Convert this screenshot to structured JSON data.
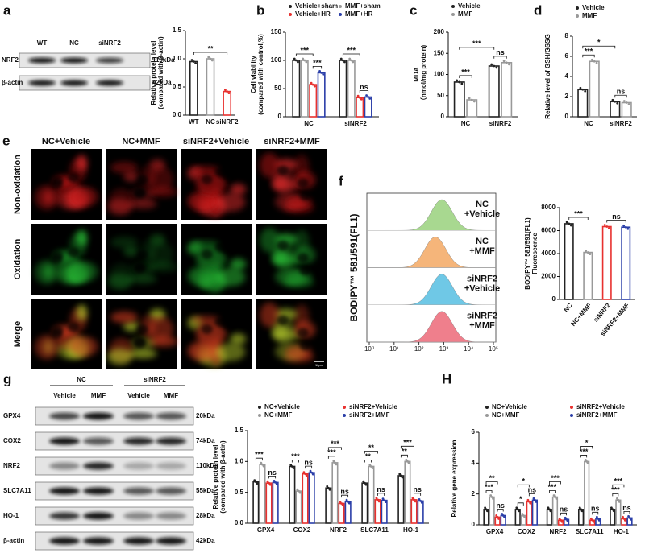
{
  "panel_labels": [
    "a",
    "b",
    "c",
    "d",
    "e",
    "f",
    "g",
    "H"
  ],
  "blot_a": {
    "lanes": [
      "WT",
      "NC",
      "siNRF2"
    ],
    "rows": [
      {
        "protein": "NRF2",
        "size": "110kDa"
      },
      {
        "protein": "β-actin",
        "size": "42kDa"
      }
    ]
  },
  "microscopy_e": {
    "columns": [
      "NC+Vehicle",
      "NC+MMF",
      "siNRF2+Vehicle",
      "siNRF2+MMF"
    ],
    "rows": [
      "Non-oxidation",
      "Oxidation",
      "Merge"
    ],
    "scale_bar": "10μm"
  },
  "flow_f": {
    "y_label": "BODIPY™ 581/591(FL1)",
    "x_ticks": [
      "10⁰",
      "10¹",
      "10²",
      "10³",
      "10⁴",
      "10⁵"
    ],
    "samples": [
      {
        "label": [
          "NC",
          "+Vehicle"
        ],
        "color": "#2e9e3e"
      },
      {
        "label": [
          "NC",
          "+MMF"
        ],
        "color": "#e8982e"
      },
      {
        "label": [
          "siNRF2",
          "+Vehicle"
        ],
        "color": "#2a9fc9"
      },
      {
        "label": [
          "siNRF2",
          "+MMF"
        ],
        "color": "#d6287a"
      }
    ]
  },
  "blot_g": {
    "groups": [
      "NC",
      "siNRF2"
    ],
    "lanes": [
      "Vehicle",
      "MMF",
      "Vehicle",
      "MMF"
    ],
    "rows": [
      {
        "protein": "GPX4",
        "size": "20kDa"
      },
      {
        "protein": "COX2",
        "size": "74kDa"
      },
      {
        "protein": "NRF2",
        "size": "110kDa"
      },
      {
        "protein": "SLC7A11",
        "size": "55kDa"
      },
      {
        "protein": "HO-1",
        "size": "28kDa"
      },
      {
        "protein": "β-actin",
        "size": "42kDa"
      }
    ]
  },
  "chart_data": [
    {
      "type": "bar",
      "y_label": [
        "Relative protein level",
        "(compared with β-actin)"
      ],
      "categories": [
        "WT",
        "NC",
        "siNRF2"
      ],
      "values": [
        0.95,
        1.0,
        0.42
      ],
      "colors": [
        "#222222",
        "#999999",
        "#e8312f"
      ],
      "ylim": [
        0,
        1.5
      ],
      "yticks": [
        {
          "value": 0,
          "label": "0.0"
        },
        {
          "value": 0.5,
          "label": "0.5"
        },
        {
          "value": 1,
          "label": "1.0"
        },
        {
          "value": 1.5,
          "label": "1.5"
        }
      ],
      "annotations": [
        {
          "label": "**",
          "between": [
            [
              0,
              0
            ],
            [
              2,
              0
            ]
          ]
        }
      ]
    },
    {
      "type": "bar",
      "y_label": [
        "Cell viability",
        "(compared with control,%)"
      ],
      "categories": [
        "NC",
        "siNRF2"
      ],
      "series": [
        {
          "name": "Vehicle+sham",
          "color": "#222222",
          "values": [
            100,
            100
          ]
        },
        {
          "name": "MMF+sham",
          "color": "#999999",
          "values": [
            100,
            100
          ]
        },
        {
          "name": "Vehicle+HR",
          "color": "#e8312f",
          "values": [
            57,
            34
          ]
        },
        {
          "name": "MMF+HR",
          "color": "#2a3ea8",
          "values": [
            78,
            35
          ]
        }
      ],
      "ylim": [
        0,
        150
      ],
      "yticks": [
        0,
        50,
        100,
        150
      ],
      "annotations": [
        {
          "label": "***",
          "between": [
            [
              0,
              2
            ],
            [
              0,
              3
            ]
          ]
        },
        {
          "label": "ns",
          "between": [
            [
              1,
              2
            ],
            [
              1,
              3
            ]
          ]
        },
        {
          "label": "***",
          "between": [
            [
              0,
              0
            ],
            [
              0,
              2
            ]
          ]
        },
        {
          "label": "***",
          "between": [
            [
              1,
              0
            ],
            [
              1,
              2
            ]
          ]
        }
      ]
    },
    {
      "type": "bar",
      "y_label": [
        "MDA",
        "（nmol/mg protein)"
      ],
      "categories": [
        "NC",
        "siNRF2"
      ],
      "series": [
        {
          "name": "Vehicle",
          "color": "#222222",
          "values": [
            82,
            120
          ]
        },
        {
          "name": "MMF",
          "color": "#999999",
          "values": [
            40,
            128
          ]
        }
      ],
      "ylim": [
        0,
        200
      ],
      "yticks": [
        0,
        50,
        100,
        150,
        200
      ],
      "annotations": [
        {
          "label": "***",
          "between": [
            [
              0,
              0
            ],
            [
              0,
              1
            ]
          ]
        },
        {
          "label": "ns",
          "between": [
            [
              1,
              0
            ],
            [
              1,
              1
            ]
          ]
        },
        {
          "label": "***",
          "between": [
            [
              0,
              0
            ],
            [
              1,
              0
            ]
          ]
        }
      ]
    },
    {
      "type": "bar",
      "y_label": [
        "Relative level of GSH/GSSG"
      ],
      "categories": [
        "NC",
        "siNRF2"
      ],
      "series": [
        {
          "name": "Vehicle",
          "color": "#222222",
          "values": [
            2.7,
            1.5
          ]
        },
        {
          "name": "MMF",
          "color": "#999999",
          "values": [
            5.5,
            1.4
          ]
        }
      ],
      "ylim": [
        0,
        8
      ],
      "yticks": [
        0,
        2,
        4,
        6,
        8
      ],
      "annotations": [
        {
          "label": "***",
          "between": [
            [
              0,
              0
            ],
            [
              0,
              1
            ]
          ]
        },
        {
          "label": "ns",
          "between": [
            [
              1,
              0
            ],
            [
              1,
              1
            ]
          ]
        },
        {
          "label": "*",
          "between": [
            [
              0,
              0
            ],
            [
              1,
              0
            ]
          ]
        }
      ]
    },
    {
      "type": "bar",
      "y_label": [
        "BODIPY™ 581/591(FL1)",
        "Fluorescence"
      ],
      "categories": [
        "NC",
        "NC+MMF",
        "siNRF2",
        "siNRF2+MMF"
      ],
      "values": [
        6600,
        4100,
        6350,
        6300
      ],
      "colors": [
        "#222222",
        "#999999",
        "#e8312f",
        "#2a3ea8"
      ],
      "ylim": [
        0,
        8000
      ],
      "yticks": [
        0,
        2000,
        4000,
        6000,
        8000
      ],
      "annotations": [
        {
          "label": "***",
          "between": [
            [
              0,
              0
            ],
            [
              1,
              0
            ]
          ]
        },
        {
          "label": "ns",
          "between": [
            [
              2,
              0
            ],
            [
              3,
              0
            ]
          ]
        }
      ]
    },
    {
      "type": "bar",
      "y_label": [
        "Relative protein level",
        "(compared with β-actin)"
      ],
      "categories": [
        "GPX4",
        "COX2",
        "NRF2",
        "SLC7A11",
        "HO-1"
      ],
      "series": [
        {
          "name": "NC+Vehicle",
          "color": "#222222",
          "values": [
            0.67,
            0.92,
            0.57,
            0.65,
            0.77
          ]
        },
        {
          "name": "siNRF2+Vehicle",
          "color": "#e8312f",
          "values": [
            0.65,
            0.8,
            0.32,
            0.38,
            0.38
          ]
        },
        {
          "name": "NC+MMF",
          "color": "#999999",
          "values": [
            0.95,
            0.52,
            0.98,
            0.92,
            1.0
          ]
        },
        {
          "name": "siNRF2+MMF",
          "color": "#2a3ea8",
          "values": [
            0.66,
            0.82,
            0.35,
            0.37,
            0.36
          ]
        }
      ],
      "order": [
        0,
        2,
        1,
        3
      ],
      "ylim": [
        0,
        1.5
      ],
      "yticks": [
        {
          "value": 0,
          "label": "0.0"
        },
        {
          "value": 0.5,
          "label": "0.5"
        },
        {
          "value": 1,
          "label": "1.0"
        },
        {
          "value": 1.5,
          "label": "1.5"
        }
      ],
      "annotations": [
        {
          "label": "***",
          "between": [
            [
              0,
              0
            ],
            [
              0,
              2
            ]
          ]
        },
        {
          "label": "ns",
          "between": [
            [
              0,
              1
            ],
            [
              0,
              3
            ]
          ]
        },
        {
          "label": "***",
          "between": [
            [
              1,
              0
            ],
            [
              1,
              2
            ]
          ]
        },
        {
          "label": "ns",
          "between": [
            [
              1,
              1
            ],
            [
              1,
              3
            ]
          ]
        },
        {
          "label": "***",
          "between": [
            [
              2,
              0
            ],
            [
              2,
              2
            ]
          ]
        },
        {
          "label": "ns",
          "between": [
            [
              2,
              1
            ],
            [
              2,
              3
            ]
          ]
        },
        {
          "label": "***",
          "between": [
            [
              2,
              0
            ],
            [
              2,
              1
            ]
          ]
        },
        {
          "label": "**",
          "between": [
            [
              3,
              0
            ],
            [
              3,
              2
            ]
          ]
        },
        {
          "label": "ns",
          "between": [
            [
              3,
              1
            ],
            [
              3,
              3
            ]
          ]
        },
        {
          "label": "**",
          "between": [
            [
              3,
              0
            ],
            [
              3,
              1
            ]
          ]
        },
        {
          "label": "**",
          "between": [
            [
              4,
              0
            ],
            [
              4,
              2
            ]
          ]
        },
        {
          "label": "ns",
          "between": [
            [
              4,
              1
            ],
            [
              4,
              3
            ]
          ]
        },
        {
          "label": "***",
          "between": [
            [
              4,
              0
            ],
            [
              4,
              1
            ]
          ]
        }
      ]
    },
    {
      "type": "bar",
      "y_label": [
        "Relative gene expression"
      ],
      "categories": [
        "GPX4",
        "COX2",
        "NRF2",
        "SLC7A11",
        "HO-1"
      ],
      "series": [
        {
          "name": "NC+Vehicle",
          "color": "#222222",
          "values": [
            1.0,
            1.0,
            1.0,
            1.0,
            1.0
          ]
        },
        {
          "name": "siNRF2+Vehicle",
          "color": "#e8312f",
          "values": [
            0.5,
            1.5,
            0.3,
            0.3,
            0.4
          ]
        },
        {
          "name": "NC+MMF",
          "color": "#999999",
          "values": [
            1.8,
            0.6,
            1.8,
            4.1,
            1.6
          ]
        },
        {
          "name": "siNRF2+MMF",
          "color": "#2a3ea8",
          "values": [
            0.6,
            1.6,
            0.35,
            0.4,
            0.45
          ]
        }
      ],
      "order": [
        0,
        2,
        1,
        3
      ],
      "ylim": [
        0,
        6
      ],
      "yticks": [
        0,
        2,
        4,
        6
      ],
      "annotations": [
        {
          "label": "***",
          "between": [
            [
              0,
              0
            ],
            [
              0,
              2
            ]
          ]
        },
        {
          "label": "ns",
          "between": [
            [
              0,
              1
            ],
            [
              0,
              3
            ]
          ]
        },
        {
          "label": "**",
          "between": [
            [
              0,
              0
            ],
            [
              0,
              1
            ]
          ]
        },
        {
          "label": "*",
          "between": [
            [
              1,
              0
            ],
            [
              1,
              2
            ]
          ]
        },
        {
          "label": "ns",
          "between": [
            [
              1,
              1
            ],
            [
              1,
              3
            ]
          ]
        },
        {
          "label": "*",
          "between": [
            [
              1,
              0
            ],
            [
              1,
              1
            ]
          ]
        },
        {
          "label": "***",
          "between": [
            [
              2,
              0
            ],
            [
              2,
              2
            ]
          ]
        },
        {
          "label": "ns",
          "between": [
            [
              2,
              1
            ],
            [
              2,
              3
            ]
          ]
        },
        {
          "label": "***",
          "between": [
            [
              2,
              0
            ],
            [
              2,
              1
            ]
          ]
        },
        {
          "label": "***",
          "between": [
            [
              3,
              0
            ],
            [
              3,
              2
            ]
          ]
        },
        {
          "label": "ns",
          "between": [
            [
              3,
              1
            ],
            [
              3,
              3
            ]
          ]
        },
        {
          "label": "*",
          "between": [
            [
              3,
              0
            ],
            [
              3,
              1
            ]
          ]
        },
        {
          "label": "***",
          "between": [
            [
              4,
              0
            ],
            [
              4,
              2
            ]
          ]
        },
        {
          "label": "ns",
          "between": [
            [
              4,
              1
            ],
            [
              4,
              3
            ]
          ]
        },
        {
          "label": "***",
          "between": [
            [
              4,
              0
            ],
            [
              4,
              1
            ]
          ]
        }
      ]
    }
  ]
}
